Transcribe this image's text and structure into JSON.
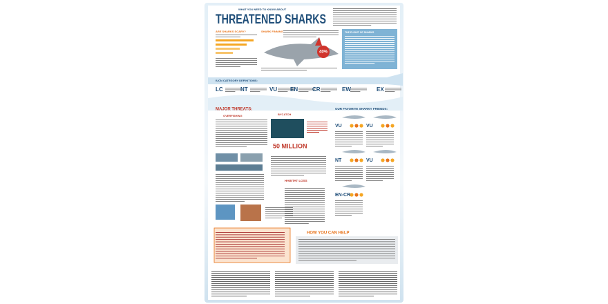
{
  "header": {
    "kicker": "WHAT YOU NEED TO KNOW ABOUT",
    "title": "THREATENED SHARKS"
  },
  "intro": {
    "scary": "ARE SHARKS SCARY?",
    "finning": "SHARK FINNING",
    "finning_stat": "40%",
    "plight": "THE PLIGHT OF SHARKS"
  },
  "iucn": {
    "title": "IUCN CATEGORY DEFINITIONS:",
    "categories": [
      "LC",
      "NT",
      "VU",
      "EN",
      "CR",
      "EW",
      "EX"
    ]
  },
  "threats": {
    "title": "MAJOR THREATS:",
    "overfishing": "OVERFISHING",
    "bycatch": "BYCATCH",
    "bycatch_stat": "50 MILLION",
    "habitat": "HABITAT LOSS"
  },
  "friends": {
    "title": "OUR FAVORITE SHARKY FRIENDS:",
    "status": [
      "VU",
      "VU",
      "NT",
      "VU",
      "EN-CR"
    ]
  },
  "help": {
    "title": "HOW YOU CAN HELP"
  }
}
